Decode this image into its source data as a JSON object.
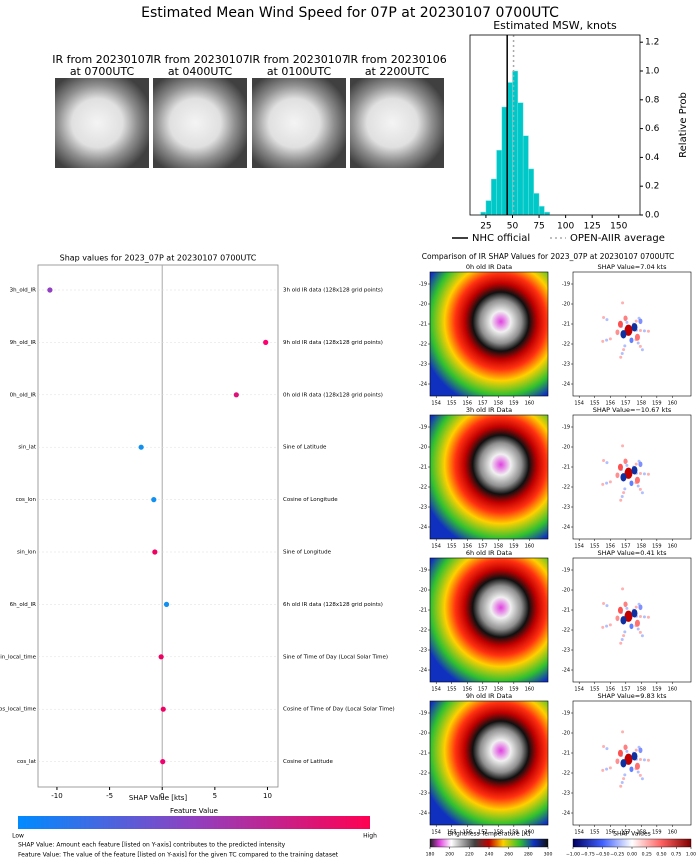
{
  "title": "Estimated Mean Wind Speed for 07P at 20230107 0700UTC",
  "ir_panels": [
    {
      "line1": "IR from 20230107",
      "line2": "at 0700UTC"
    },
    {
      "line1": "IR from 20230107",
      "line2": "at 0400UTC"
    },
    {
      "line1": "IR from 20230107",
      "line2": "at 0100UTC"
    },
    {
      "line1": "IR from 20230106",
      "line2": "at 2200UTC"
    }
  ],
  "chart_data": [
    {
      "type": "histogram",
      "title": "Estimated MSW, knots",
      "bins": [
        20,
        25,
        30,
        35,
        40,
        45,
        50,
        55,
        60,
        65,
        70,
        75,
        80,
        85
      ],
      "values": [
        0.02,
        0.1,
        0.25,
        0.45,
        0.75,
        0.92,
        1.0,
        0.78,
        0.55,
        0.32,
        0.15,
        0.06,
        0.02
      ],
      "color": "#00c8c8",
      "xlim": [
        10,
        170
      ],
      "xticks": [
        25,
        50,
        75,
        100,
        125,
        150
      ],
      "ylim": [
        0,
        1.25
      ],
      "yticks": [
        {
          "value": 0,
          "label": "0.0"
        },
        0.2,
        0.4,
        0.6,
        0.8,
        {
          "value": 1,
          "label": "1.0"
        },
        1.2
      ],
      "y_label": "Relative Prob",
      "reference_lines": [
        {
          "name": "NHC official",
          "value": 45,
          "color": "#000000"
        },
        {
          "name": "OPEN-AIIR average",
          "value": 51,
          "color": "#aaaaaa"
        }
      ]
    },
    {
      "type": "scatter",
      "title": "Shap values for 2023_07P at 20230107 0700UTC",
      "categories": [
        "3h_old_IR",
        "9h_old_IR",
        "0h_old_IR",
        "sin_lat",
        "cos_lon",
        "sin_lon",
        "6h_old_IR",
        "sin_local_time",
        "cos_local_time",
        "cos_lat"
      ],
      "descriptions": [
        "3h old IR data (128x128 grid points)",
        "9h old IR data (128x128 grid points)",
        "0h old IR data (128x128 grid points)",
        "Sine of Latitude",
        "Cosine of Longitude",
        "Sine of Longitude",
        "6h old IR data (128x128 grid points)",
        "Sine of Time of Day (Local Solar Time)",
        "Cosine of Time of Day (Local Solar Time)",
        "Cosine of Latitude"
      ],
      "values": [
        -10.67,
        9.83,
        7.04,
        -2.0,
        -0.8,
        -0.7,
        0.41,
        -0.1,
        0.1,
        0.05
      ],
      "colors": [
        "#9040c0",
        "#ff0070",
        "#e0107a",
        "#1090f0",
        "#1090f0",
        "#f00060",
        "#1090f0",
        "#f00060",
        "#f00060",
        "#f00070"
      ],
      "xlim": [
        -11.8,
        11
      ],
      "xticks": [
        -10,
        -5,
        0,
        5,
        10
      ],
      "x_label": "SHAP Value [kts]",
      "colorbar": {
        "label": "Feature Value",
        "low": "Low",
        "high": "High"
      }
    }
  ],
  "comparison": {
    "title": "Comparison of IR SHAP Values for 2023_07P at 20230107 0700UTC",
    "rows": [
      {
        "ir_title": "0h old IR Data",
        "shap_title": "SHAP Value=7.04 kts"
      },
      {
        "ir_title": "3h old IR Data",
        "shap_title": "SHAP Value=−10.67 kts"
      },
      {
        "ir_title": "6h old IR Data",
        "shap_title": "SHAP Value=0.41 kts"
      },
      {
        "ir_title": "9h old IR Data",
        "shap_title": "SHAP Value=9.83 kts"
      }
    ],
    "xlim": [
      153.6,
      161.2
    ],
    "ylim": [
      -24.6,
      -18.4
    ],
    "xticks": [
      154,
      155,
      156,
      157,
      158,
      159,
      160
    ],
    "yticks": [
      -19,
      -20,
      -21,
      -22,
      -23,
      -24
    ],
    "bt_colorbar": {
      "label": "Brightness Temperature [K]",
      "ticks": [
        180,
        200,
        220,
        240,
        260,
        280,
        300
      ]
    },
    "shap_colorbar": {
      "label": "SHAP Values",
      "ticks": [
        {
          "value": -1,
          "label": "−1.00"
        },
        {
          "value": -0.75,
          "label": "−0.75"
        },
        {
          "value": -0.5,
          "label": "−0.50"
        },
        {
          "value": -0.25,
          "label": "−0.25"
        },
        {
          "value": 0,
          "label": "0.00"
        },
        0.25,
        {
          "value": 0.5,
          "label": "0.50"
        },
        0.75,
        {
          "value": 1,
          "label": "1.00"
        }
      ]
    }
  },
  "footnotes": [
    "SHAP Value: Amount each feature [listed on Y-axis] contributes to the predicted intensity",
    "Feature Value: The value of the feature [listed on Y-axis] for the given TC compared to the training dataset"
  ]
}
